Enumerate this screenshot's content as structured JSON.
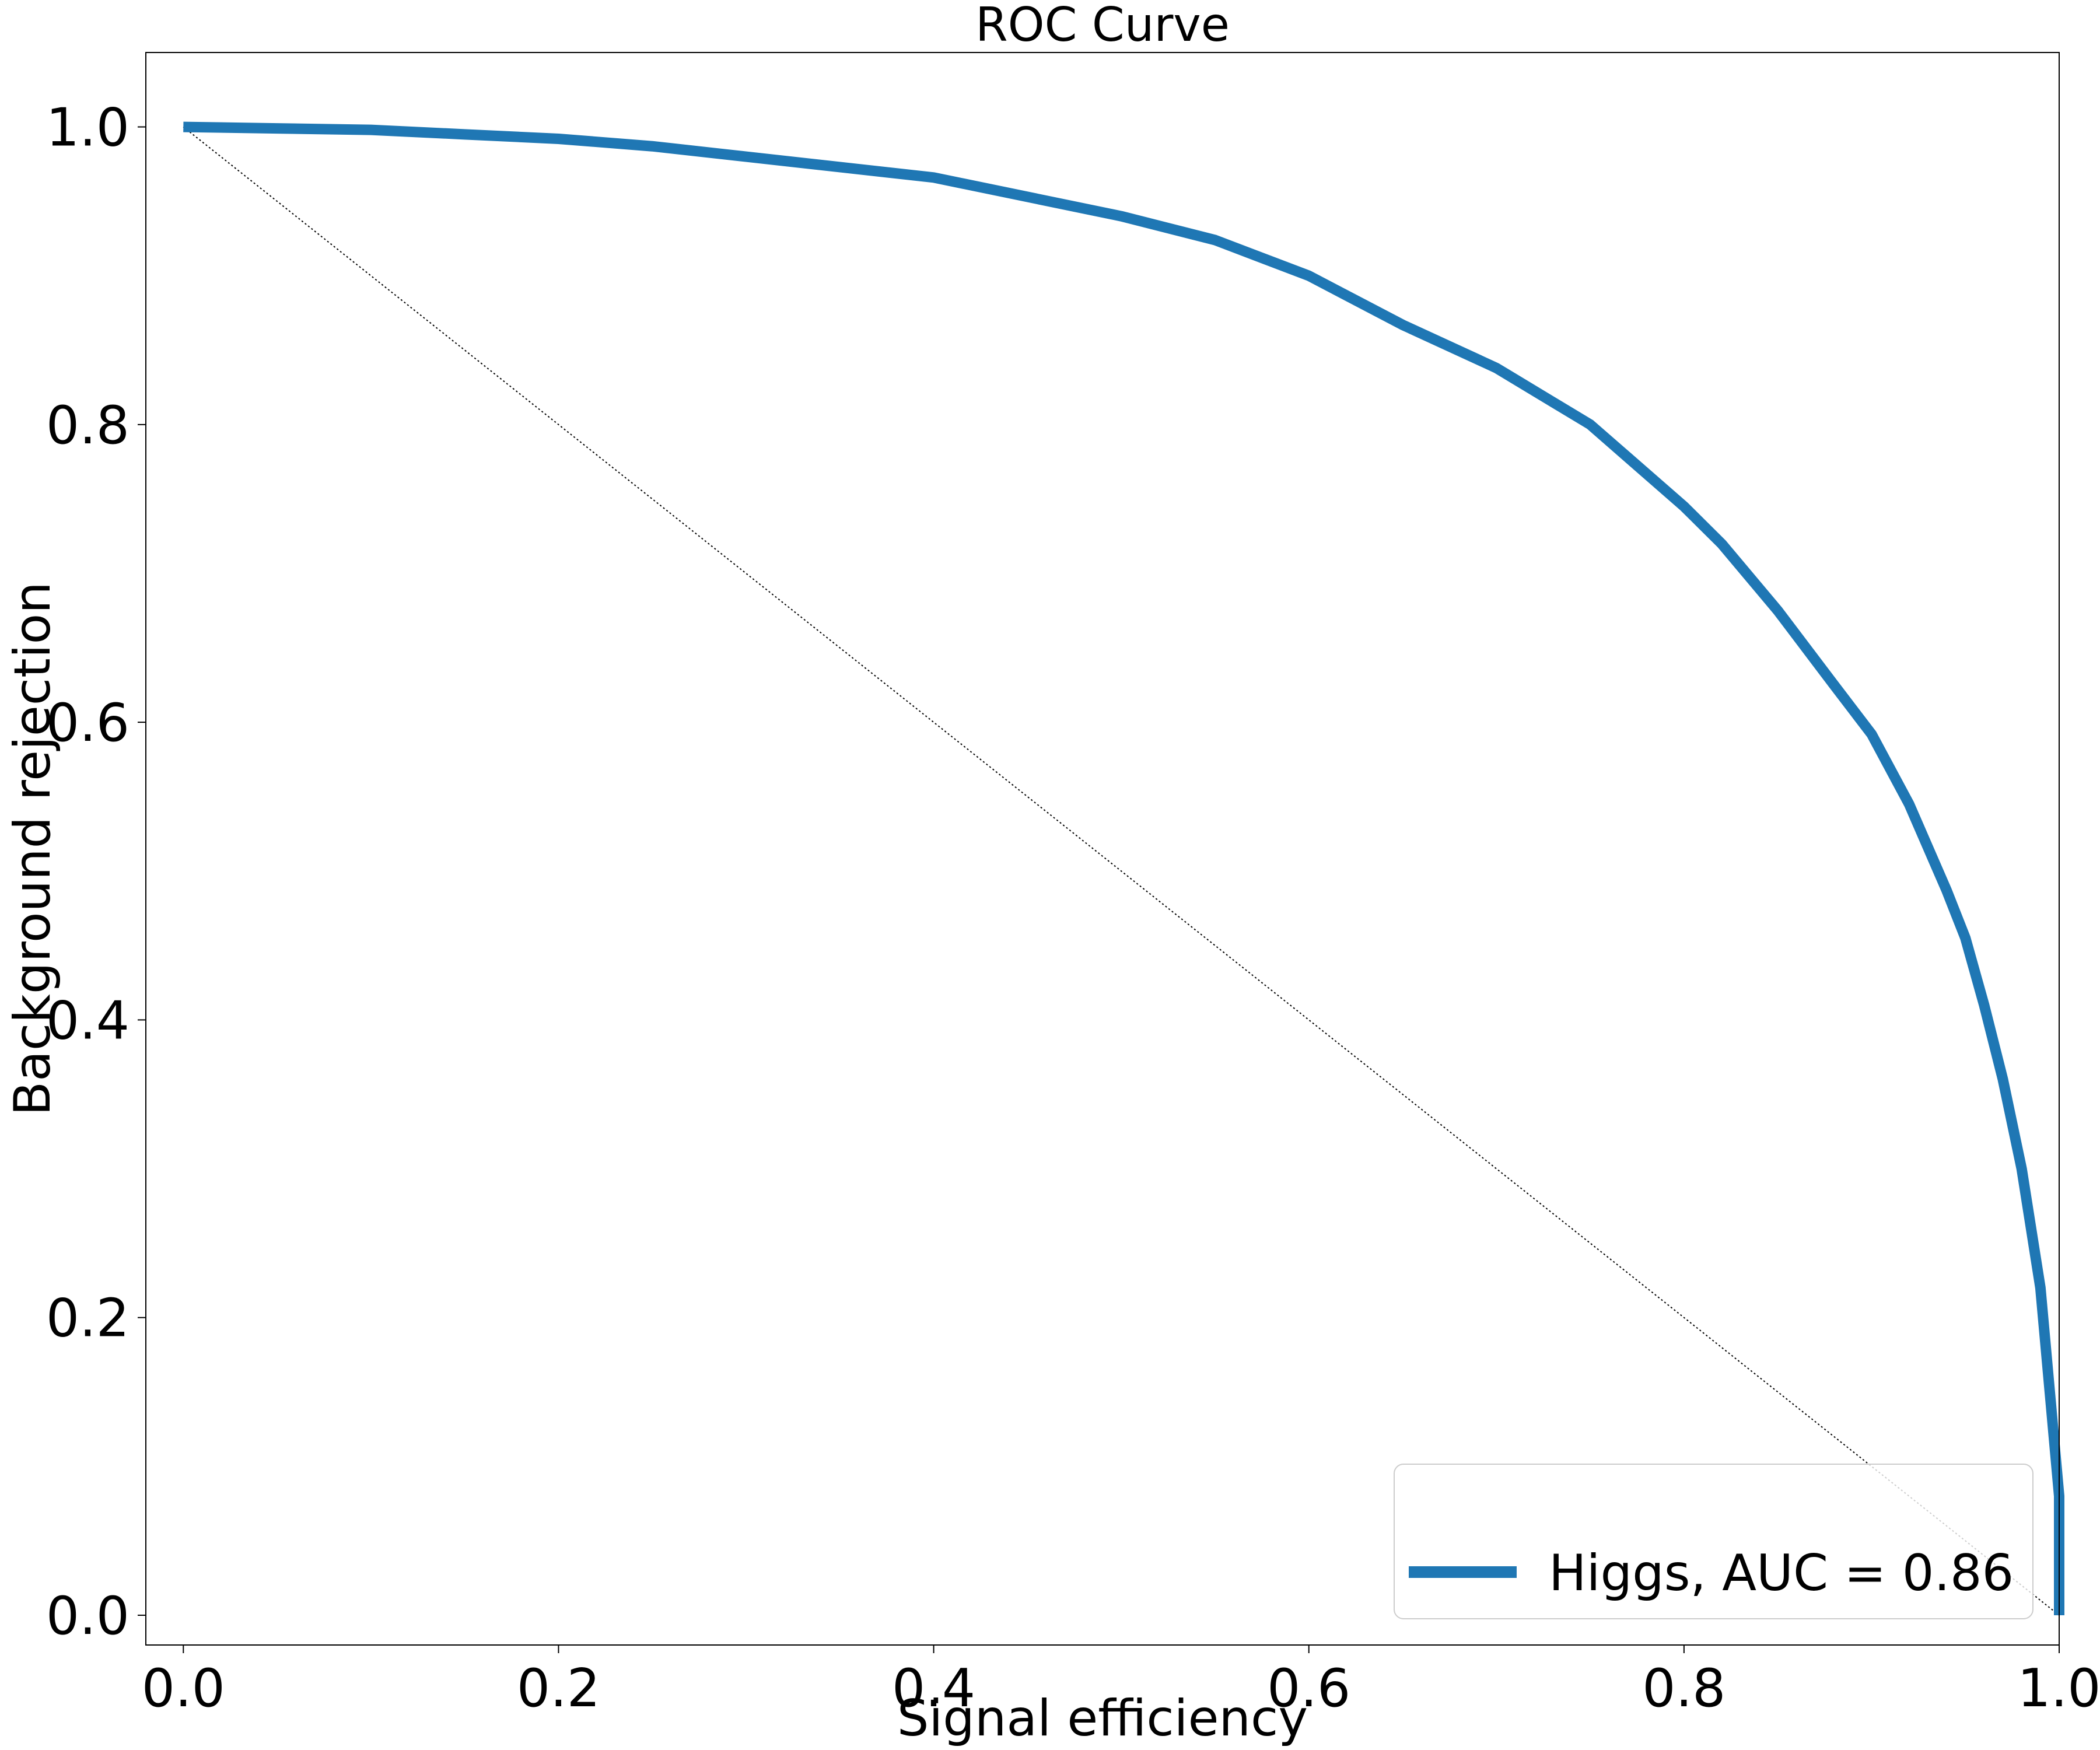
{
  "chart_data": {
    "type": "line",
    "title": "ROC Curve",
    "xlabel": "Signal efficiency",
    "ylabel": "Background rejection",
    "xlim": [
      -0.02,
      1.0
    ],
    "ylim": [
      -0.02,
      1.05
    ],
    "xticks": [
      {
        "value": 0.0,
        "label": "0.0"
      },
      {
        "value": 0.2,
        "label": "0.2"
      },
      {
        "value": 0.4,
        "label": "0.4"
      },
      {
        "value": 0.6,
        "label": "0.6"
      },
      {
        "value": 0.8,
        "label": "0.8"
      },
      {
        "value": 1.0,
        "label": "1.0"
      }
    ],
    "yticks": [
      {
        "value": 0.0,
        "label": "0.0"
      },
      {
        "value": 0.2,
        "label": "0.2"
      },
      {
        "value": 0.4,
        "label": "0.4"
      },
      {
        "value": 0.6,
        "label": "0.6"
      },
      {
        "value": 0.8,
        "label": "0.8"
      },
      {
        "value": 1.0,
        "label": "1.0"
      }
    ],
    "grid": false,
    "legend_position": "lower-right",
    "series": [
      {
        "name": "Higgs, AUC = 0.86",
        "color": "#1f77b4",
        "style": "solid",
        "x": [
          0.0,
          0.05,
          0.1,
          0.15,
          0.2,
          0.25,
          0.3,
          0.35,
          0.4,
          0.45,
          0.5,
          0.55,
          0.6,
          0.65,
          0.7,
          0.75,
          0.8,
          0.82,
          0.85,
          0.88,
          0.9,
          0.92,
          0.94,
          0.95,
          0.96,
          0.97,
          0.98,
          0.99,
          0.995,
          1.0,
          1.0
        ],
        "y": [
          1.0,
          0.999,
          0.998,
          0.995,
          0.992,
          0.987,
          0.98,
          0.973,
          0.966,
          0.953,
          0.94,
          0.924,
          0.9,
          0.867,
          0.838,
          0.8,
          0.745,
          0.72,
          0.675,
          0.625,
          0.592,
          0.545,
          0.487,
          0.455,
          0.41,
          0.36,
          0.3,
          0.22,
          0.15,
          0.08,
          0.0
        ]
      },
      {
        "name": "",
        "color": "#000000",
        "style": "dotted",
        "x": [
          0.0,
          1.0
        ],
        "y": [
          1.0,
          0.0
        ]
      }
    ]
  }
}
